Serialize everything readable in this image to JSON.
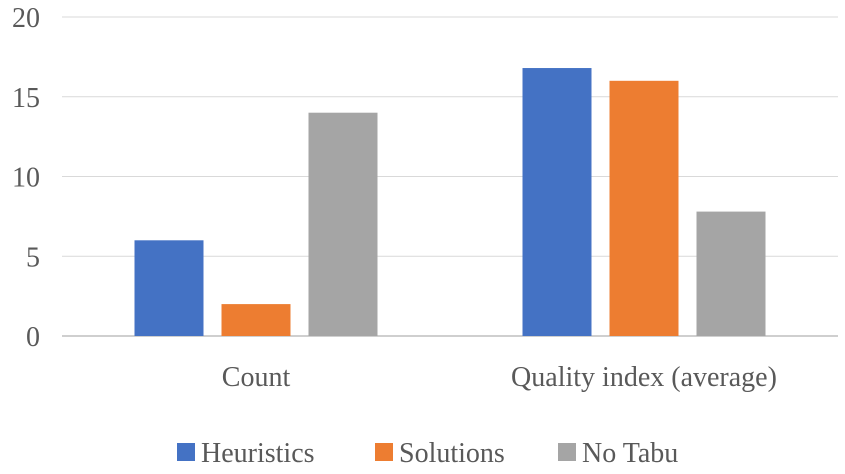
{
  "chart_data": {
    "type": "bar",
    "categories": [
      "Count",
      "Quality index (average)"
    ],
    "series": [
      {
        "name": "Heuristics",
        "values": [
          6,
          16.8
        ],
        "color": "#4472C4"
      },
      {
        "name": "Solutions",
        "values": [
          2,
          16
        ],
        "color": "#ED7D31"
      },
      {
        "name": "No Tabu",
        "values": [
          14,
          7.8
        ],
        "color": "#A5A5A5"
      }
    ],
    "title": "",
    "xlabel": "",
    "ylabel": "",
    "ylim": [
      0,
      20
    ],
    "yticks": [
      "0",
      "5",
      "10",
      "15",
      "20"
    ],
    "grid": true,
    "legend_position": "bottom"
  }
}
